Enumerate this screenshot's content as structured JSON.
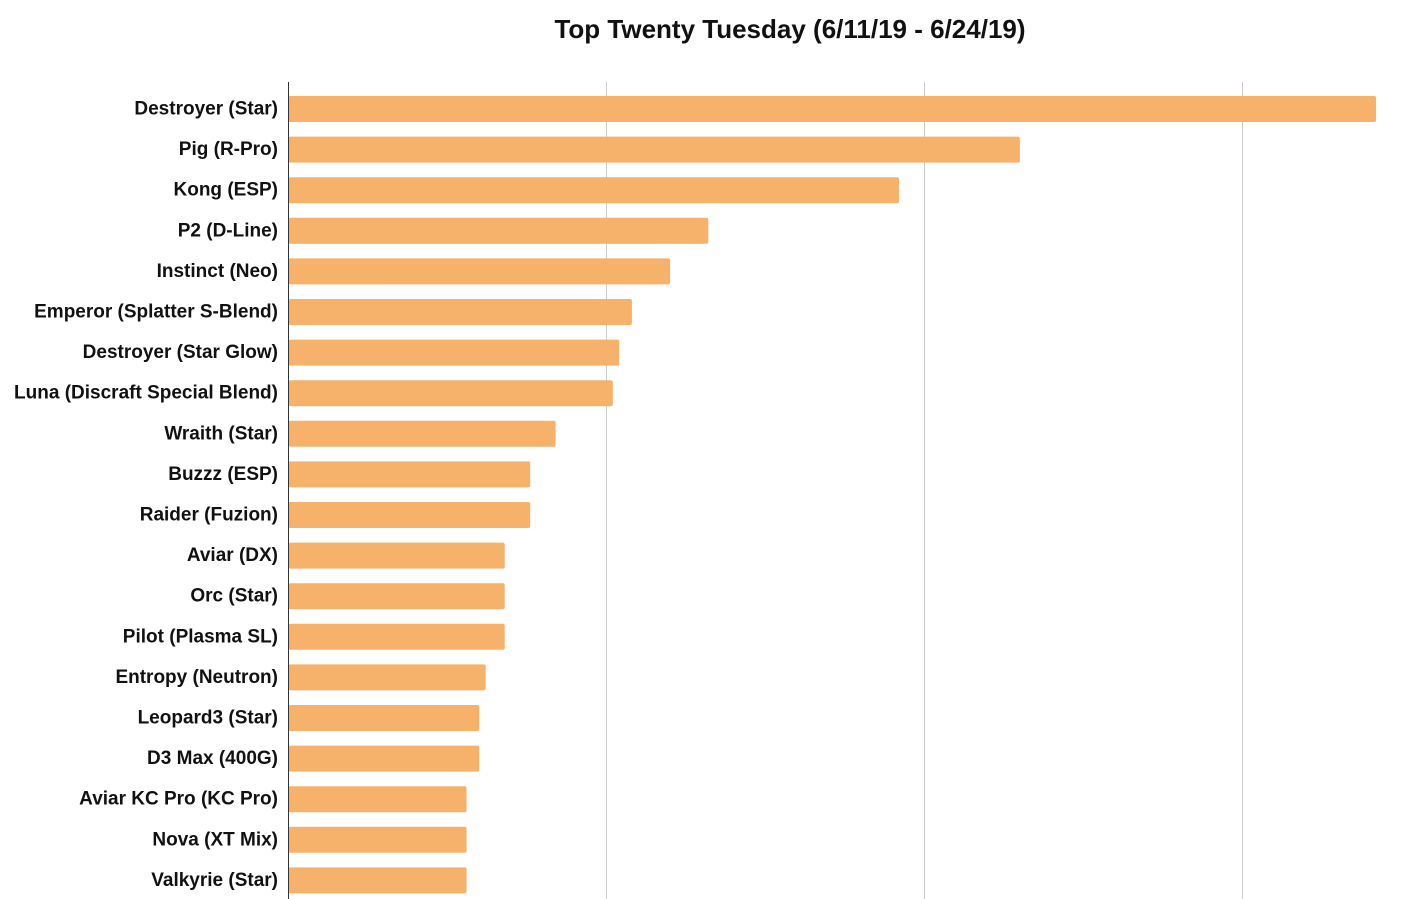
{
  "chart_data": {
    "type": "bar",
    "orientation": "horizontal",
    "title": "Top Twenty Tuesday (6/11/19 - 6/24/19)",
    "xlabel": "",
    "ylabel": "",
    "xlim": [
      0,
      17
    ],
    "grid": true,
    "legend": "none",
    "color": "#F6B26B",
    "categories": [
      "Destroyer (Star)",
      "Pig (R-Pro)",
      "Kong (ESP)",
      "P2 (D-Line)",
      "Instinct (Neo)",
      "Emperor (Splatter S-Blend)",
      "Destroyer (Star Glow)",
      "Luna (Discraft Special Blend)",
      "Wraith (Star)",
      "Buzzz (ESP)",
      "Raider (Fuzion)",
      "Aviar (DX)",
      "Orc (Star)",
      "Pilot (Plasma SL)",
      "Entropy (Neutron)",
      "Leopard3 (Star)",
      "D3 Max (400G)",
      "Aviar KC Pro (KC Pro)",
      "Nova (XT Mix)",
      "Valkyrie (Star)"
    ],
    "values": [
      17.1,
      11.5,
      9.6,
      6.6,
      6.0,
      5.4,
      5.2,
      5.1,
      4.2,
      3.8,
      3.8,
      3.4,
      3.4,
      3.4,
      3.1,
      3.0,
      3.0,
      2.8,
      2.8,
      2.8
    ]
  }
}
